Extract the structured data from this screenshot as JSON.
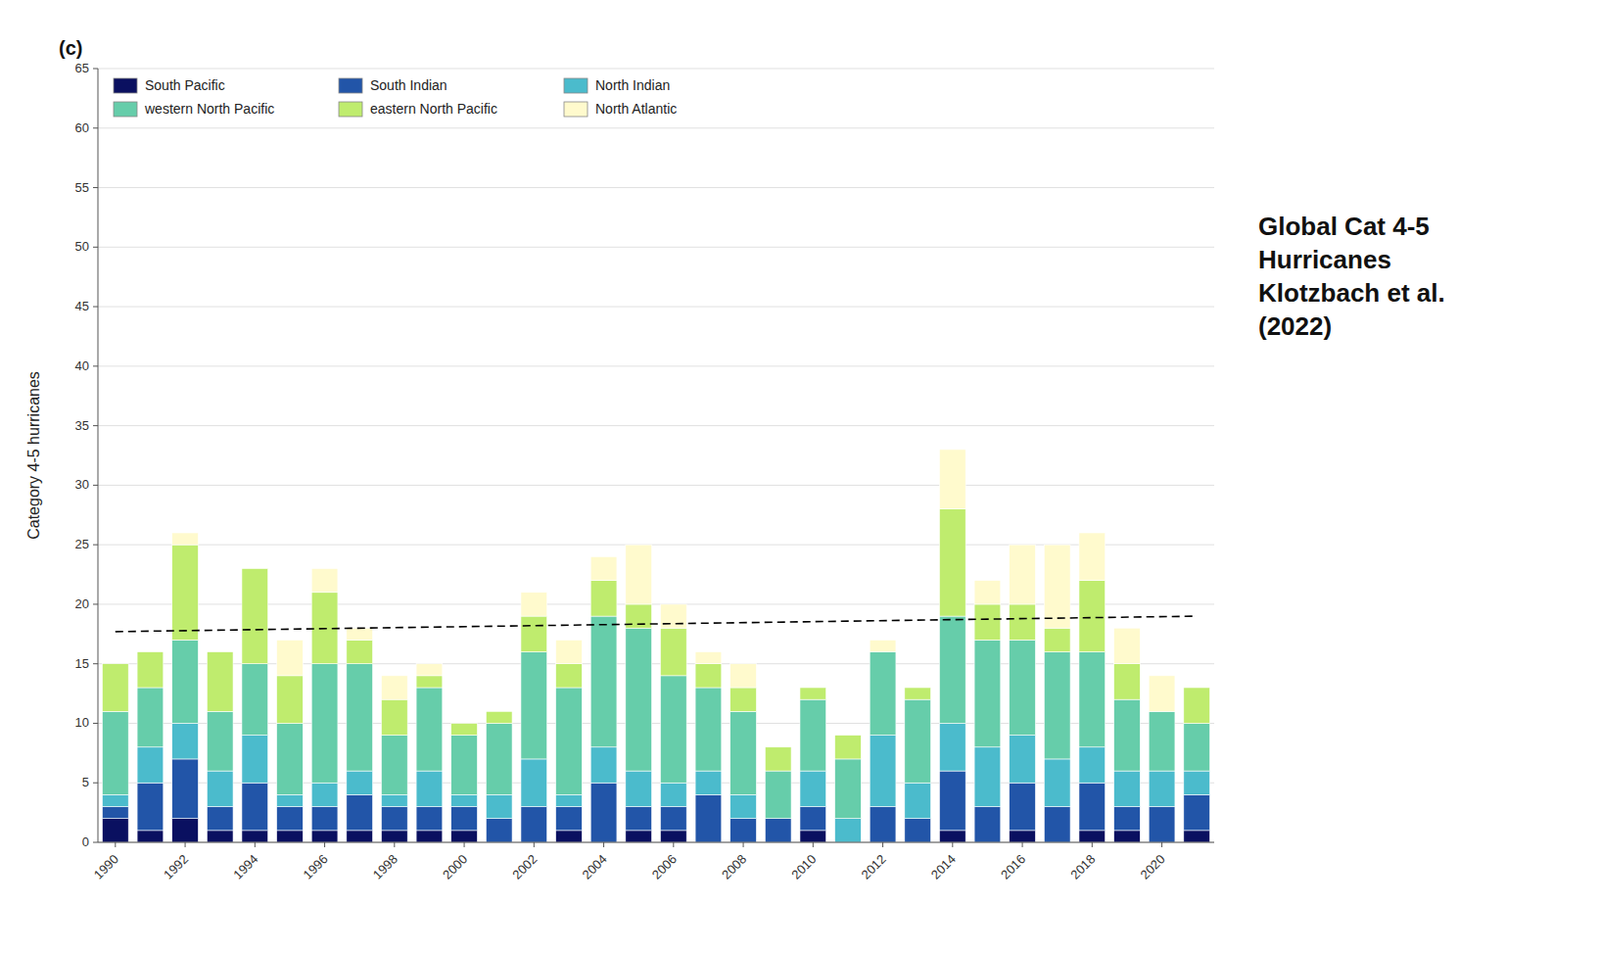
{
  "chart_data": {
    "type": "bar",
    "stacked": true,
    "title": "Global Cat 4-5\nHurricanes\nKlotzbach et al.\n(2022)",
    "annotations": [
      "(c)"
    ],
    "y_label": "Category 4-5 hurricanes",
    "categories": [
      "1990",
      null,
      "1992",
      null,
      "1994",
      null,
      "1996",
      null,
      "1998",
      null,
      "2000",
      null,
      "2002",
      null,
      "2004",
      null,
      "2006",
      null,
      "2008",
      null,
      "2010",
      null,
      "2012",
      null,
      "2014",
      null,
      "2016",
      null,
      "2018",
      null,
      "2020",
      null
    ],
    "series": [
      {
        "name": "South Pacific",
        "color": "#0A1060",
        "values": [
          2,
          1,
          2,
          1,
          1,
          1,
          1,
          1,
          1,
          1,
          1,
          0,
          0,
          1,
          0,
          1,
          1,
          0,
          0,
          0,
          1,
          0,
          0,
          0,
          1,
          0,
          1,
          0,
          1,
          1,
          0,
          1
        ]
      },
      {
        "name": "South Indian",
        "color": "#2255A8",
        "values": [
          1,
          4,
          5,
          2,
          4,
          2,
          2,
          3,
          2,
          2,
          2,
          2,
          3,
          2,
          5,
          2,
          2,
          4,
          2,
          2,
          2,
          0,
          3,
          2,
          5,
          3,
          4,
          3,
          4,
          2,
          3,
          3
        ]
      },
      {
        "name": "North Indian",
        "color": "#4BBBCC",
        "values": [
          1,
          3,
          3,
          3,
          4,
          1,
          2,
          2,
          1,
          3,
          1,
          2,
          4,
          1,
          3,
          3,
          2,
          2,
          2,
          0,
          3,
          2,
          6,
          3,
          4,
          5,
          4,
          4,
          3,
          3,
          3,
          2
        ]
      },
      {
        "name": "western North Pacific",
        "color": "#66CDAA",
        "values": [
          7,
          5,
          7,
          5,
          6,
          6,
          10,
          9,
          5,
          7,
          5,
          6,
          9,
          9,
          11,
          12,
          9,
          7,
          7,
          4,
          6,
          5,
          7,
          7,
          9,
          9,
          8,
          9,
          8,
          6,
          5,
          4
        ]
      },
      {
        "name": "eastern North Pacific",
        "color": "#BFEC6E",
        "values": [
          4,
          3,
          8,
          5,
          8,
          4,
          6,
          2,
          3,
          1,
          1,
          1,
          3,
          2,
          3,
          2,
          4,
          2,
          2,
          2,
          1,
          2,
          0,
          1,
          9,
          3,
          3,
          2,
          6,
          3,
          0,
          3
        ]
      },
      {
        "name": "North Atlantic",
        "color": "#FFFACD",
        "values": [
          0,
          0,
          1,
          0,
          0,
          3,
          2,
          1,
          2,
          1,
          0,
          0,
          2,
          2,
          2,
          5,
          2,
          1,
          2,
          0,
          0,
          0,
          1,
          0,
          5,
          2,
          5,
          7,
          4,
          3,
          3,
          0
        ]
      }
    ],
    "trend_line": {
      "values": [
        17.7,
        19.0
      ],
      "line_style": "dashed",
      "color": "#000000"
    },
    "ylim": [
      0,
      65
    ],
    "yticks": [
      0,
      5,
      10,
      15,
      20,
      25,
      30,
      35,
      40,
      45,
      50,
      55,
      60,
      65
    ],
    "grid": true,
    "legend": "upper left"
  }
}
